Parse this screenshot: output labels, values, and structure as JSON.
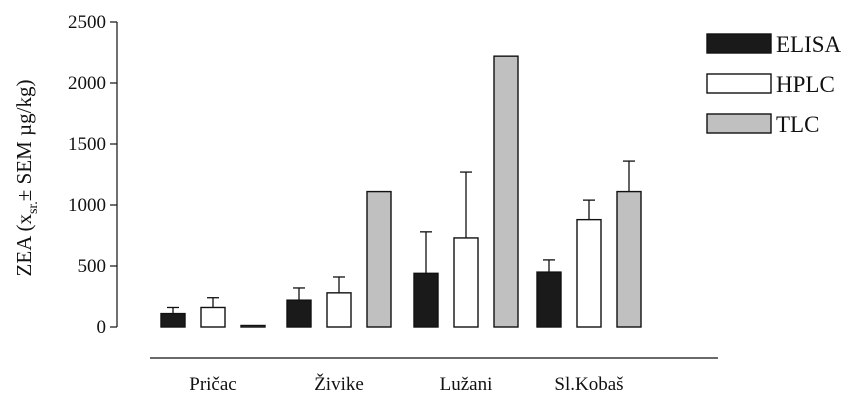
{
  "chart_data": {
    "type": "bar",
    "title": "",
    "ylabel": {
      "main": "ZEA (x",
      "subscript": "sr.",
      "symbol": "±",
      "rest": " SEM µg/kg)"
    },
    "xlabel": "",
    "ylim": [
      0,
      2500
    ],
    "yticks": [
      "0",
      "500",
      "1000",
      "1500",
      "2000",
      "2500"
    ],
    "categories": [
      "Pričac",
      "Živike",
      "Lužani",
      "Sl.Kobaš"
    ],
    "series": [
      {
        "name": "ELISA",
        "color": "#1a1a1a",
        "values": [
          110,
          220,
          440,
          450
        ],
        "errors": [
          50,
          100,
          340,
          100
        ]
      },
      {
        "name": "HPLC",
        "color": "#ffffff",
        "values": [
          160,
          280,
          730,
          880
        ],
        "errors": [
          80,
          130,
          540,
          160
        ]
      },
      {
        "name": "TLC",
        "color": "#c0c0c0",
        "values": [
          10,
          1110,
          2220,
          1110
        ],
        "errors": [
          0,
          0,
          0,
          250
        ]
      }
    ],
    "legend_position": "top-right",
    "grid": false
  }
}
